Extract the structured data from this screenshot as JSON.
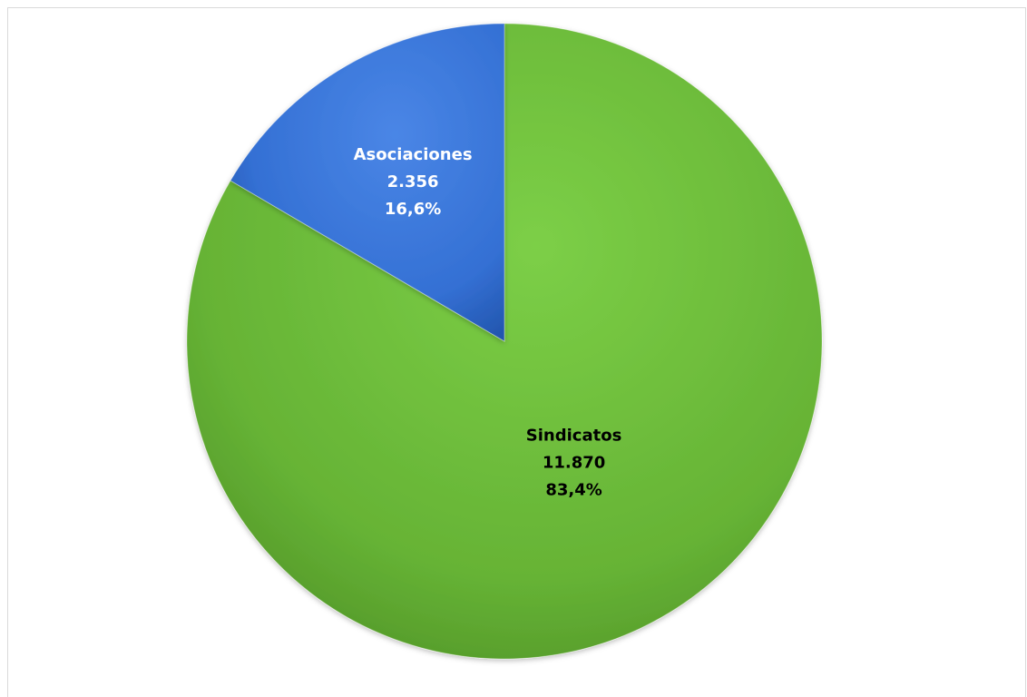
{
  "chart_data": {
    "type": "pie",
    "title": "",
    "slices": [
      {
        "label": "Sindicatos",
        "value": 11870,
        "value_text": "11.870",
        "percent_text": "83,4%",
        "color": "#6cbf3c",
        "label_color": "#000000"
      },
      {
        "label": "Asociaciones",
        "value": 2356,
        "value_text": "2.356",
        "percent_text": "16,6%",
        "color": "#3572d6",
        "label_color": "#ffffff"
      }
    ],
    "start_angle_deg": 0,
    "direction": "clockwise",
    "legend": "none"
  }
}
